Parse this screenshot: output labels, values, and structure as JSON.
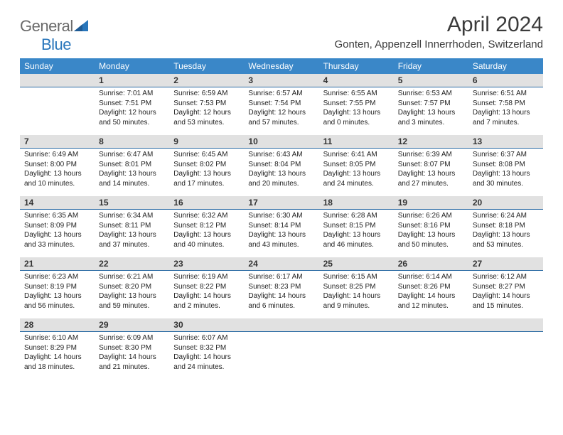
{
  "logo": {
    "general": "General",
    "blue": "Blue"
  },
  "title": "April 2024",
  "location": "Gonten, Appenzell Innerrhoden, Switzerland",
  "weekdays": [
    "Sunday",
    "Monday",
    "Tuesday",
    "Wednesday",
    "Thursday",
    "Friday",
    "Saturday"
  ],
  "colors": {
    "header_bg": "#3a87c8",
    "daynum_bg": "#e1e1e1",
    "daynum_border": "#2a6aa3",
    "text": "#3b3b3b",
    "logo_gray": "#6a6a6a",
    "logo_blue": "#2976bb"
  },
  "weeks": [
    [
      {
        "num": "",
        "empty": true
      },
      {
        "num": "1",
        "sunrise": "Sunrise: 7:01 AM",
        "sunset": "Sunset: 7:51 PM",
        "daylight": "Daylight: 12 hours and 50 minutes."
      },
      {
        "num": "2",
        "sunrise": "Sunrise: 6:59 AM",
        "sunset": "Sunset: 7:53 PM",
        "daylight": "Daylight: 12 hours and 53 minutes."
      },
      {
        "num": "3",
        "sunrise": "Sunrise: 6:57 AM",
        "sunset": "Sunset: 7:54 PM",
        "daylight": "Daylight: 12 hours and 57 minutes."
      },
      {
        "num": "4",
        "sunrise": "Sunrise: 6:55 AM",
        "sunset": "Sunset: 7:55 PM",
        "daylight": "Daylight: 13 hours and 0 minutes."
      },
      {
        "num": "5",
        "sunrise": "Sunrise: 6:53 AM",
        "sunset": "Sunset: 7:57 PM",
        "daylight": "Daylight: 13 hours and 3 minutes."
      },
      {
        "num": "6",
        "sunrise": "Sunrise: 6:51 AM",
        "sunset": "Sunset: 7:58 PM",
        "daylight": "Daylight: 13 hours and 7 minutes."
      }
    ],
    [
      {
        "num": "7",
        "sunrise": "Sunrise: 6:49 AM",
        "sunset": "Sunset: 8:00 PM",
        "daylight": "Daylight: 13 hours and 10 minutes."
      },
      {
        "num": "8",
        "sunrise": "Sunrise: 6:47 AM",
        "sunset": "Sunset: 8:01 PM",
        "daylight": "Daylight: 13 hours and 14 minutes."
      },
      {
        "num": "9",
        "sunrise": "Sunrise: 6:45 AM",
        "sunset": "Sunset: 8:02 PM",
        "daylight": "Daylight: 13 hours and 17 minutes."
      },
      {
        "num": "10",
        "sunrise": "Sunrise: 6:43 AM",
        "sunset": "Sunset: 8:04 PM",
        "daylight": "Daylight: 13 hours and 20 minutes."
      },
      {
        "num": "11",
        "sunrise": "Sunrise: 6:41 AM",
        "sunset": "Sunset: 8:05 PM",
        "daylight": "Daylight: 13 hours and 24 minutes."
      },
      {
        "num": "12",
        "sunrise": "Sunrise: 6:39 AM",
        "sunset": "Sunset: 8:07 PM",
        "daylight": "Daylight: 13 hours and 27 minutes."
      },
      {
        "num": "13",
        "sunrise": "Sunrise: 6:37 AM",
        "sunset": "Sunset: 8:08 PM",
        "daylight": "Daylight: 13 hours and 30 minutes."
      }
    ],
    [
      {
        "num": "14",
        "sunrise": "Sunrise: 6:35 AM",
        "sunset": "Sunset: 8:09 PM",
        "daylight": "Daylight: 13 hours and 33 minutes."
      },
      {
        "num": "15",
        "sunrise": "Sunrise: 6:34 AM",
        "sunset": "Sunset: 8:11 PM",
        "daylight": "Daylight: 13 hours and 37 minutes."
      },
      {
        "num": "16",
        "sunrise": "Sunrise: 6:32 AM",
        "sunset": "Sunset: 8:12 PM",
        "daylight": "Daylight: 13 hours and 40 minutes."
      },
      {
        "num": "17",
        "sunrise": "Sunrise: 6:30 AM",
        "sunset": "Sunset: 8:14 PM",
        "daylight": "Daylight: 13 hours and 43 minutes."
      },
      {
        "num": "18",
        "sunrise": "Sunrise: 6:28 AM",
        "sunset": "Sunset: 8:15 PM",
        "daylight": "Daylight: 13 hours and 46 minutes."
      },
      {
        "num": "19",
        "sunrise": "Sunrise: 6:26 AM",
        "sunset": "Sunset: 8:16 PM",
        "daylight": "Daylight: 13 hours and 50 minutes."
      },
      {
        "num": "20",
        "sunrise": "Sunrise: 6:24 AM",
        "sunset": "Sunset: 8:18 PM",
        "daylight": "Daylight: 13 hours and 53 minutes."
      }
    ],
    [
      {
        "num": "21",
        "sunrise": "Sunrise: 6:23 AM",
        "sunset": "Sunset: 8:19 PM",
        "daylight": "Daylight: 13 hours and 56 minutes."
      },
      {
        "num": "22",
        "sunrise": "Sunrise: 6:21 AM",
        "sunset": "Sunset: 8:20 PM",
        "daylight": "Daylight: 13 hours and 59 minutes."
      },
      {
        "num": "23",
        "sunrise": "Sunrise: 6:19 AM",
        "sunset": "Sunset: 8:22 PM",
        "daylight": "Daylight: 14 hours and 2 minutes."
      },
      {
        "num": "24",
        "sunrise": "Sunrise: 6:17 AM",
        "sunset": "Sunset: 8:23 PM",
        "daylight": "Daylight: 14 hours and 6 minutes."
      },
      {
        "num": "25",
        "sunrise": "Sunrise: 6:15 AM",
        "sunset": "Sunset: 8:25 PM",
        "daylight": "Daylight: 14 hours and 9 minutes."
      },
      {
        "num": "26",
        "sunrise": "Sunrise: 6:14 AM",
        "sunset": "Sunset: 8:26 PM",
        "daylight": "Daylight: 14 hours and 12 minutes."
      },
      {
        "num": "27",
        "sunrise": "Sunrise: 6:12 AM",
        "sunset": "Sunset: 8:27 PM",
        "daylight": "Daylight: 14 hours and 15 minutes."
      }
    ],
    [
      {
        "num": "28",
        "sunrise": "Sunrise: 6:10 AM",
        "sunset": "Sunset: 8:29 PM",
        "daylight": "Daylight: 14 hours and 18 minutes."
      },
      {
        "num": "29",
        "sunrise": "Sunrise: 6:09 AM",
        "sunset": "Sunset: 8:30 PM",
        "daylight": "Daylight: 14 hours and 21 minutes."
      },
      {
        "num": "30",
        "sunrise": "Sunrise: 6:07 AM",
        "sunset": "Sunset: 8:32 PM",
        "daylight": "Daylight: 14 hours and 24 minutes."
      },
      {
        "num": "",
        "empty": true
      },
      {
        "num": "",
        "empty": true
      },
      {
        "num": "",
        "empty": true
      },
      {
        "num": "",
        "empty": true
      }
    ]
  ]
}
